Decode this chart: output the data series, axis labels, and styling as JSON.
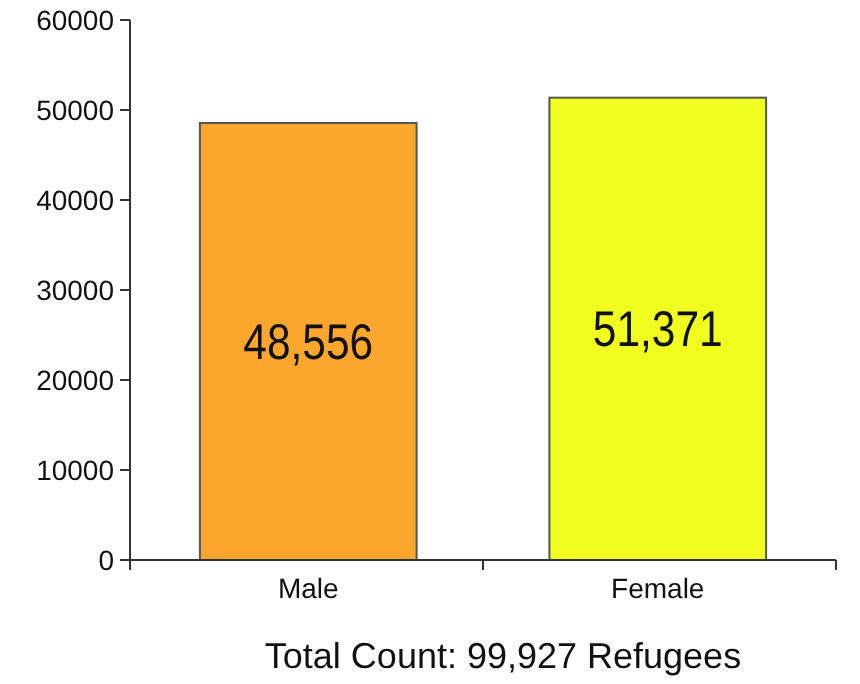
{
  "chart_data": {
    "type": "bar",
    "categories": [
      "Male",
      "Female"
    ],
    "values": [
      48556,
      51371
    ],
    "colors": [
      "#fba62d",
      "#f0ff1f"
    ],
    "value_labels": [
      "48,556",
      "51,371"
    ],
    "ylim": [
      0,
      60000
    ],
    "yticks": [
      0,
      10000,
      20000,
      30000,
      40000,
      50000,
      60000
    ],
    "grid": false,
    "annotations": [
      "Total Count: 99,927 Refugees"
    ]
  }
}
